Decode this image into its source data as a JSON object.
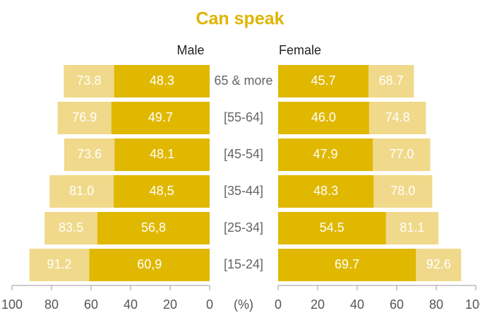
{
  "chart_data": {
    "type": "butterfly",
    "title": "Can speak",
    "categories": [
      "65 & more",
      "[55-64]",
      "[45-54]",
      "[35-44]",
      "[25-34]",
      "[15-24]"
    ],
    "panels": [
      {
        "name": "Male",
        "side": "left",
        "series": [
          {
            "color": "#f0d98a",
            "values": [
              73.8,
              76.9,
              73.6,
              81.0,
              83.5,
              91.2
            ],
            "value_labels": [
              "73.8",
              "76.9",
              "73.6",
              "81.0",
              "83.5",
              "91.2"
            ]
          },
          {
            "color": "#e0b800",
            "values": [
              48.3,
              49.7,
              48.1,
              48.5,
              56.8,
              60.9
            ],
            "value_labels": [
              "48.3",
              "49.7",
              "48.1",
              "48,5",
              "56,8",
              "60,9"
            ]
          }
        ]
      },
      {
        "name": "Female",
        "side": "right",
        "series": [
          {
            "color": "#f0d98a",
            "values": [
              68.7,
              74.8,
              77.0,
              78.0,
              81.1,
              92.6
            ],
            "value_labels": [
              "68.7",
              "74.8",
              "77.0",
              "78.0",
              "81.1",
              "92.6"
            ]
          },
          {
            "color": "#e0b800",
            "values": [
              45.7,
              46.0,
              47.9,
              48.3,
              54.5,
              69.7
            ],
            "value_labels": [
              "45.7",
              "46.0",
              "47.9",
              "48.3",
              "54.5",
              "69.7"
            ]
          }
        ]
      }
    ],
    "xlim": [
      0,
      100
    ],
    "xticks": [
      0,
      20,
      40,
      60,
      80,
      100
    ],
    "xlabel": "(%)"
  }
}
